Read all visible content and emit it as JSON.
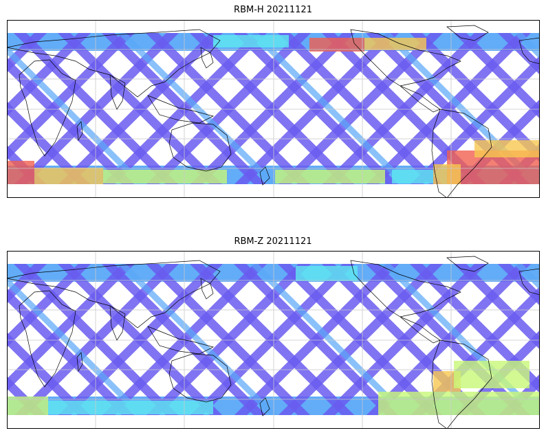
{
  "panels": [
    {
      "title": "RBM-H 20211121"
    },
    {
      "title": "RBM-Z 20211121"
    }
  ],
  "colors": {
    "low": "#6a5cf0",
    "mid_low": "#5aa8f8",
    "mid": "#5fe8f0",
    "mid_high": "#c8f878",
    "high": "#f8c850",
    "very_high": "#f06050",
    "coastline": "#000000",
    "gridline": "#c8c8c8"
  }
}
